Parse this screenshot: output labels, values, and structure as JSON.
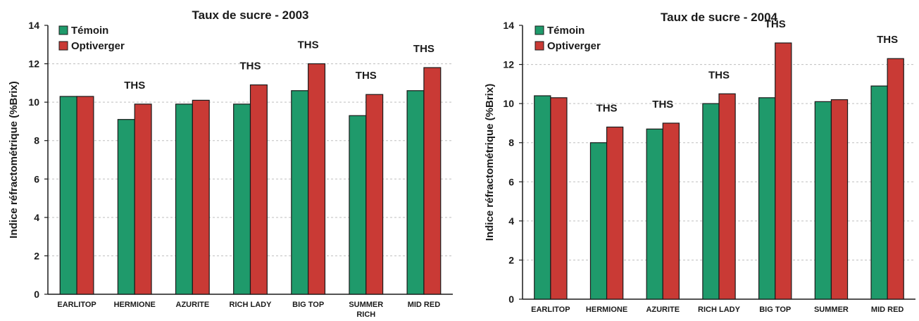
{
  "colors": {
    "temoin": "#1f9a6b",
    "optiverger": "#c93a35",
    "border": "#1a1a1a",
    "gridline": "#bfbfbf"
  },
  "chart_data": [
    {
      "type": "bar",
      "title": "Taux de sucre - 2003",
      "xlabel": "",
      "ylabel": "Indice réfractométrique (%Brix)",
      "ylim": [
        0,
        14
      ],
      "yticks": [
        0,
        2,
        4,
        6,
        8,
        10,
        12,
        14
      ],
      "grid": true,
      "legend": "top-left",
      "categories": [
        "EARLITOP",
        "HERMIONE",
        "AZURITE",
        "RICH LADY",
        "BIG TOP",
        "SUMMER RICH",
        "MID RED"
      ],
      "series": [
        {
          "name": "Témoin",
          "values": [
            10.3,
            9.1,
            9.9,
            9.9,
            10.6,
            9.3,
            10.6
          ]
        },
        {
          "name": "Optiverger",
          "values": [
            10.3,
            9.9,
            10.1,
            10.9,
            12.0,
            10.4,
            11.8
          ]
        }
      ],
      "annotations": [
        "",
        "THS",
        "",
        "THS",
        "THS",
        "THS",
        "THS"
      ]
    },
    {
      "type": "bar",
      "title": "Taux de sucre - 2004",
      "xlabel": "",
      "ylabel": "Indice réfractométrique (%Brix)",
      "ylim": [
        0,
        14
      ],
      "yticks": [
        0,
        2,
        4,
        6,
        8,
        10,
        12,
        14
      ],
      "grid": true,
      "legend": "top-left",
      "categories": [
        "EARLITOP",
        "HERMIONE",
        "AZURITE",
        "RICH LADY",
        "BIG TOP",
        "SUMMER",
        "MID RED"
      ],
      "series": [
        {
          "name": "Témoin",
          "values": [
            10.4,
            8.0,
            8.7,
            10.0,
            10.3,
            10.1,
            10.9
          ]
        },
        {
          "name": "Optiverger",
          "values": [
            10.3,
            8.8,
            9.0,
            10.5,
            13.1,
            10.2,
            12.3
          ]
        }
      ],
      "annotations": [
        "",
        "THS",
        "THS",
        "THS",
        "THS",
        "",
        "THS"
      ]
    }
  ]
}
